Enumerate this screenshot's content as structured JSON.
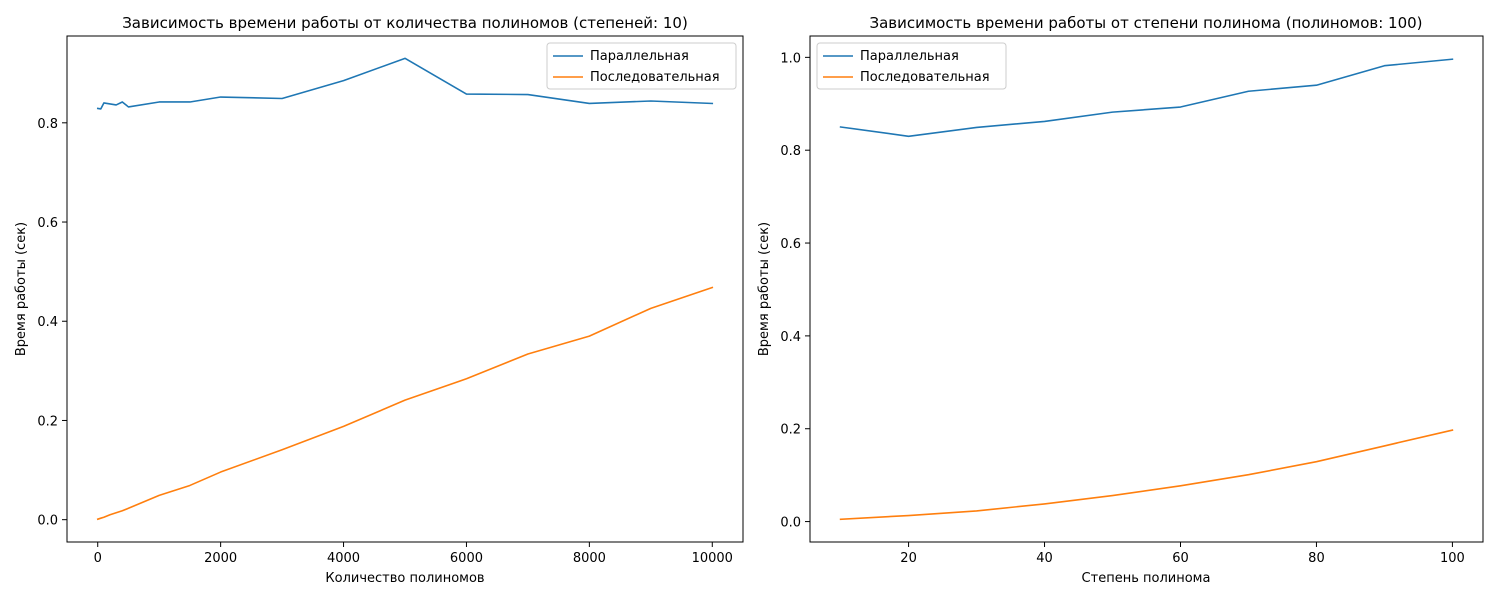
{
  "chart_data": [
    {
      "type": "line",
      "title": "Зависимость времени работы от количества полиномов (степеней: 10)",
      "xlabel": "Количество полиномов",
      "ylabel": "Время работы (сек)",
      "xlim": [
        -500,
        10500
      ],
      "ylim": [
        -0.045,
        0.975
      ],
      "xticks": [
        0,
        2000,
        4000,
        6000,
        8000,
        10000
      ],
      "xtick_labels": [
        "0",
        "2000",
        "4000",
        "6000",
        "8000",
        "10000"
      ],
      "yticks": [
        0.0,
        0.2,
        0.4,
        0.6,
        0.8
      ],
      "ytick_labels": [
        "0.0",
        "0.2",
        "0.4",
        "0.6",
        "0.8"
      ],
      "grid": false,
      "legend_position": "top-right",
      "x": [
        1,
        50,
        100,
        200,
        300,
        400,
        500,
        1000,
        1500,
        2000,
        3000,
        4000,
        5000,
        6000,
        7000,
        8000,
        9000,
        10000
      ],
      "series": [
        {
          "name": "Параллельная",
          "color": "#1f77b4",
          "values": [
            0.829,
            0.828,
            0.84,
            0.838,
            0.836,
            0.842,
            0.832,
            0.842,
            0.842,
            0.852,
            0.849,
            0.885,
            0.93,
            0.858,
            0.857,
            0.839,
            0.844,
            0.839
          ]
        },
        {
          "name": "Последовательная",
          "color": "#ff7f0e",
          "values": [
            0.001,
            0.003,
            0.005,
            0.01,
            0.014,
            0.018,
            0.023,
            0.049,
            0.069,
            0.096,
            0.141,
            0.188,
            0.241,
            0.284,
            0.334,
            0.37,
            0.426,
            0.468
          ]
        }
      ]
    },
    {
      "type": "line",
      "title": "Зависимость времени работы от степени полинома (полиномов: 100)",
      "xlabel": "Степень полинома",
      "ylabel": "Время работы (сек)",
      "xlim": [
        5.5,
        104.5
      ],
      "ylim": [
        -0.044,
        1.046
      ],
      "xticks": [
        20,
        40,
        60,
        80,
        100
      ],
      "xtick_labels": [
        "20",
        "40",
        "60",
        "80",
        "100"
      ],
      "yticks": [
        0.0,
        0.2,
        0.4,
        0.6,
        0.8,
        1.0
      ],
      "ytick_labels": [
        "0.0",
        "0.2",
        "0.4",
        "0.6",
        "0.8",
        "1.0"
      ],
      "grid": false,
      "legend_position": "top-left",
      "x": [
        10,
        20,
        30,
        40,
        50,
        60,
        70,
        80,
        90,
        100
      ],
      "series": [
        {
          "name": "Параллельная",
          "color": "#1f77b4",
          "values": [
            0.85,
            0.83,
            0.849,
            0.862,
            0.882,
            0.893,
            0.927,
            0.94,
            0.982,
            0.996
          ]
        },
        {
          "name": "Последовательная",
          "color": "#ff7f0e",
          "values": [
            0.005,
            0.013,
            0.023,
            0.038,
            0.056,
            0.077,
            0.101,
            0.129,
            0.163,
            0.197
          ]
        }
      ]
    }
  ]
}
